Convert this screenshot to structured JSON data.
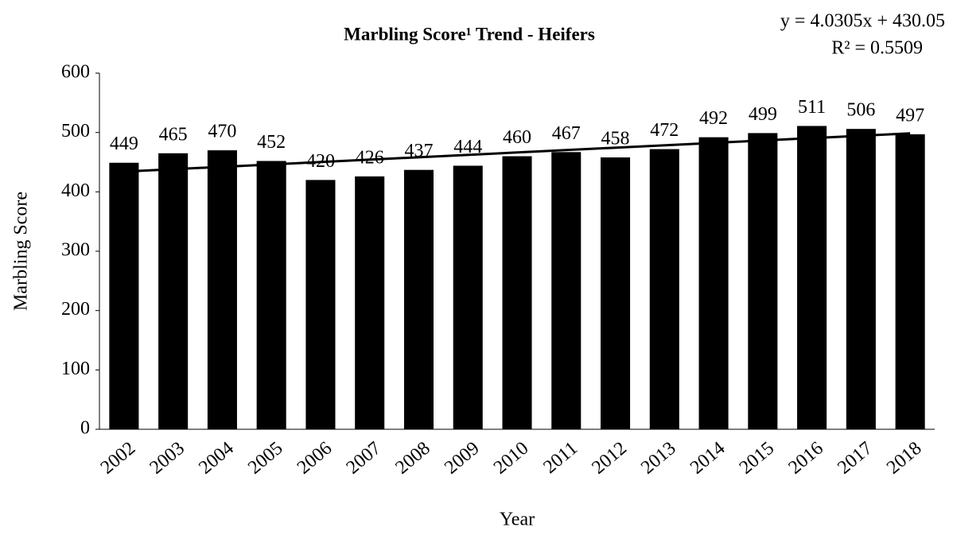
{
  "chart_data": {
    "type": "bar",
    "title": "Marbling Score¹ Trend - Heifers",
    "x_label": "Year",
    "y_label": "Marbling Score",
    "categories": [
      "2002",
      "2003",
      "2004",
      "2005",
      "2006",
      "2007",
      "2008",
      "2009",
      "2010",
      "2011",
      "2012",
      "2013",
      "2014",
      "2015",
      "2016",
      "2017",
      "2018"
    ],
    "values": [
      449,
      465,
      470,
      452,
      420,
      426,
      437,
      444,
      460,
      467,
      458,
      472,
      492,
      499,
      511,
      506,
      497
    ],
    "color": "#000000",
    "ylim": [
      0,
      600
    ],
    "yticks": [
      0,
      100,
      200,
      300,
      400,
      500,
      600
    ],
    "grid": false,
    "trendline": {
      "slope": 4.0305,
      "intercept": 430.05,
      "label": "y = 4.0305x + 430.05",
      "r2_label": "R² = 0.5509"
    }
  }
}
